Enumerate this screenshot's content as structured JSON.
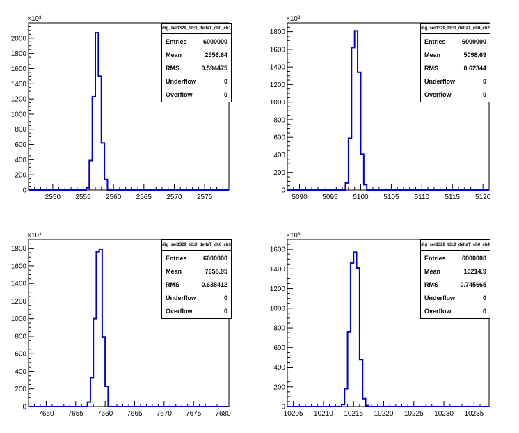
{
  "chart_data": [
    {
      "type": "histogram",
      "title": "dig_ser1329_tdc0_deltaT_ch0_ch1",
      "y_exponent_label": "×10³",
      "xlim": [
        2546,
        2579
      ],
      "ylim": [
        0,
        2200
      ],
      "x_ticks": [
        2550,
        2555,
        2560,
        2565,
        2570,
        2575
      ],
      "y_ticks": [
        0,
        200,
        400,
        600,
        800,
        1000,
        1200,
        1400,
        1600,
        1800,
        2000
      ],
      "bin_width": 0.5,
      "bins_x": [
        2555.5,
        2556,
        2556.5,
        2557,
        2557.5,
        2558,
        2558.5
      ],
      "bins_y": [
        30,
        390,
        1230,
        2070,
        1500,
        620,
        140
      ],
      "stats": {
        "entries_label": "Entries",
        "entries": "6000000",
        "mean_label": "Mean",
        "mean": "2556.84",
        "rms_label": "RMS",
        "rms": "0.594475",
        "underflow_label": "Underflow",
        "underflow": "0",
        "overflow_label": "Overflow",
        "overflow": "0"
      }
    },
    {
      "type": "histogram",
      "title": "dig_ser1329_tdc0_deltaT_ch0_ch2",
      "y_exponent_label": "×10³",
      "xlim": [
        5088,
        5121
      ],
      "ylim": [
        0,
        1900
      ],
      "x_ticks": [
        5090,
        5095,
        5100,
        5105,
        5110,
        5115,
        5120
      ],
      "y_ticks": [
        0,
        200,
        400,
        600,
        800,
        1000,
        1200,
        1400,
        1600,
        1800
      ],
      "bin_width": 0.5,
      "bins_x": [
        5097.5,
        5098,
        5098.5,
        5099,
        5099.5,
        5100,
        5100.5
      ],
      "bins_y": [
        80,
        590,
        1620,
        1810,
        1340,
        410,
        60
      ],
      "stats": {
        "entries_label": "Entries",
        "entries": "6000000",
        "mean_label": "Mean",
        "mean": "5098.69",
        "rms_label": "RMS",
        "rms": "0.62344",
        "underflow_label": "Underflow",
        "underflow": "0",
        "overflow_label": "Overflow",
        "overflow": "0"
      }
    },
    {
      "type": "histogram",
      "title": "dig_ser1329_tdc0_deltaT_ch0_ch3",
      "y_exponent_label": "×10³",
      "xlim": [
        7647,
        7681
      ],
      "ylim": [
        0,
        1900
      ],
      "x_ticks": [
        7650,
        7655,
        7660,
        7665,
        7670,
        7675,
        7680
      ],
      "y_ticks": [
        0,
        200,
        400,
        600,
        800,
        1000,
        1200,
        1400,
        1600,
        1800
      ],
      "bin_width": 0.5,
      "bins_x": [
        7657,
        7657.5,
        7658,
        7658.5,
        7659,
        7659.5,
        7660
      ],
      "bins_y": [
        50,
        330,
        1000,
        1760,
        1790,
        790,
        230
      ],
      "stats": {
        "entries_label": "Entries",
        "entries": "6000000",
        "mean_label": "Mean",
        "mean": "7658.95",
        "rms_label": "RMS",
        "rms": "0.638412",
        "underflow_label": "Underflow",
        "underflow": "0",
        "overflow_label": "Overflow",
        "overflow": "0"
      }
    },
    {
      "type": "histogram",
      "title": "dig_ser1329_tdc0_deltaT_ch0_ch4",
      "y_exponent_label": "×10³",
      "xlim": [
        10204,
        10237.5
      ],
      "ylim": [
        0,
        1700
      ],
      "x_ticks": [
        10205,
        10210,
        10215,
        10220,
        10225,
        10230,
        10235
      ],
      "y_ticks": [
        0,
        200,
        400,
        600,
        800,
        1000,
        1200,
        1400,
        1600
      ],
      "bin_width": 0.5,
      "bins_x": [
        10213,
        10213.5,
        10214,
        10214.5,
        10215,
        10215.5,
        10216,
        10216.5,
        10217
      ],
      "bins_y": [
        20,
        180,
        760,
        1460,
        1570,
        1410,
        480,
        80,
        10
      ],
      "stats": {
        "entries_label": "Entries",
        "entries": "6000000",
        "mean_label": "Mean",
        "mean": "10214.9",
        "rms_label": "RMS",
        "rms": "0.745665",
        "underflow_label": "Underflow",
        "underflow": "0",
        "overflow_label": "Overflow",
        "overflow": "0"
      }
    }
  ],
  "colors": {
    "line": "#0000cc",
    "axis": "#000000",
    "background": "#ffffff"
  }
}
